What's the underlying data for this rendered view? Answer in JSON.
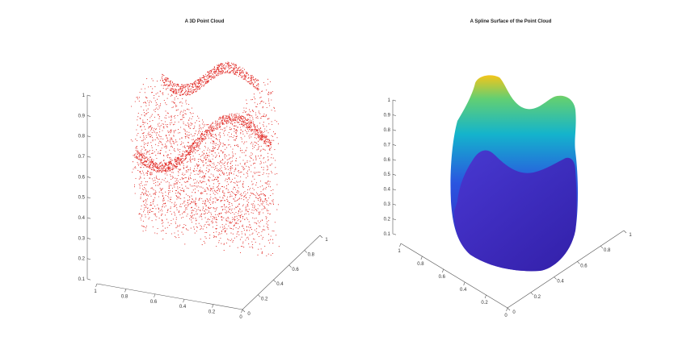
{
  "chart_data": [
    {
      "type": "scatter",
      "title": "A 3D Point Cloud",
      "projection": "3d",
      "marker_color": "#e0201b",
      "z_ticks": [
        "0.1",
        "0.2",
        "0.3",
        "0.4",
        "0.5",
        "0.6",
        "0.7",
        "0.8",
        "0.9",
        "1"
      ],
      "x_ticks": [
        "1",
        "0.8",
        "0.6",
        "0.4",
        "0.2",
        "0"
      ],
      "y_ticks": [
        "0",
        "0.2",
        "0.4",
        "0.6",
        "0.8",
        "1"
      ],
      "xlim": [
        0,
        1
      ],
      "ylim": [
        0,
        1
      ],
      "zlim": [
        0.1,
        1
      ],
      "grid": false
    },
    {
      "type": "surface",
      "title": "A Spline Surface of the Point Cloud",
      "projection": "3d",
      "colormap": [
        "#3b1fb8",
        "#1e6ee8",
        "#14b8c8",
        "#7cd46a",
        "#f2c21a"
      ],
      "z_ticks": [
        "0.1",
        "0.2",
        "0.3",
        "0.4",
        "0.5",
        "0.6",
        "0.7",
        "0.8",
        "0.9",
        "1"
      ],
      "x_ticks": [
        "1",
        "0.8",
        "0.6",
        "0.4",
        "0.2",
        "0"
      ],
      "y_ticks": [
        "0",
        "0.2",
        "0.4",
        "0.6",
        "0.8",
        "1"
      ],
      "xlim": [
        0,
        1
      ],
      "ylim": [
        0,
        1
      ],
      "zlim": [
        0.1,
        1
      ],
      "grid": false
    }
  ]
}
